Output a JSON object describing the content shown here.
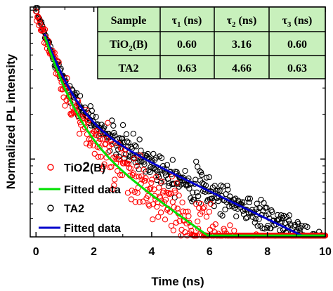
{
  "chart_data": {
    "type": "scatter",
    "xlabel": "Time (ns)",
    "ylabel": "Normalized PL intensity",
    "xlim": [
      -0.2,
      10
    ],
    "x_ticks": [
      0,
      2,
      4,
      6,
      8,
      10
    ],
    "y_scale": "log",
    "ylim": [
      0.03,
      1.05
    ],
    "grid": false,
    "legend_position": "bottom-left",
    "series": [
      {
        "name": "TiO2(B)",
        "kind": "scatter",
        "marker": "open-circle",
        "color": "#ff0000",
        "decay": {
          "a1": 0.57,
          "tau1": 0.6,
          "a2": 0.2,
          "tau2": 3.16,
          "a3": 0.23,
          "tau3": 0.6
        },
        "x_range": [
          0,
          10
        ],
        "n_points": 420,
        "noise": 0.22
      },
      {
        "name": "Fitted data",
        "kind": "line",
        "color": "#00e000",
        "decay": {
          "a1": 0.57,
          "tau1": 0.6,
          "a2": 0.2,
          "tau2": 3.16,
          "a3": 0.23,
          "tau3": 0.6
        },
        "x_range": [
          0.3,
          10
        ]
      },
      {
        "name": "TA2",
        "kind": "scatter",
        "marker": "open-circle",
        "color": "#000000",
        "decay": {
          "a1": 0.5,
          "tau1": 0.63,
          "a2": 0.22,
          "tau2": 4.66,
          "a3": 0.28,
          "tau3": 0.63
        },
        "x_range": [
          0,
          10
        ],
        "n_points": 420,
        "noise": 0.13
      },
      {
        "name": "Fitted data",
        "kind": "line",
        "color": "#0000cc",
        "decay": {
          "a1": 0.5,
          "tau1": 0.63,
          "a2": 0.22,
          "tau2": 4.66,
          "a3": 0.28,
          "tau3": 0.63
        },
        "x_range": [
          0.3,
          10
        ]
      }
    ],
    "legend": [
      {
        "label_main": "TiO",
        "label_sub": "2",
        "label_tail": "(B)",
        "series": 0
      },
      {
        "label": "Fitted data",
        "series": 1
      },
      {
        "label": "TA2",
        "series": 2
      },
      {
        "label": "Fitted data",
        "series": 3
      }
    ],
    "table": {
      "header": [
        {
          "main": "Sample"
        },
        {
          "main": "τ",
          "sub": "1",
          "tail": " (ns)"
        },
        {
          "main": "τ",
          "sub": "2",
          "tail": " (ns)"
        },
        {
          "main": "τ",
          "sub": "3",
          "tail": " (ns)"
        }
      ],
      "rows": [
        {
          "sample_main": "TiO",
          "sample_sub": "2",
          "sample_tail": "(B)",
          "t1": "0.60",
          "t2": "3.16",
          "t3": "0.60"
        },
        {
          "sample": "TA2",
          "t1": "0.63",
          "t2": "4.66",
          "t3": "0.63"
        }
      ],
      "fill_color": "#c8f0bc"
    }
  }
}
